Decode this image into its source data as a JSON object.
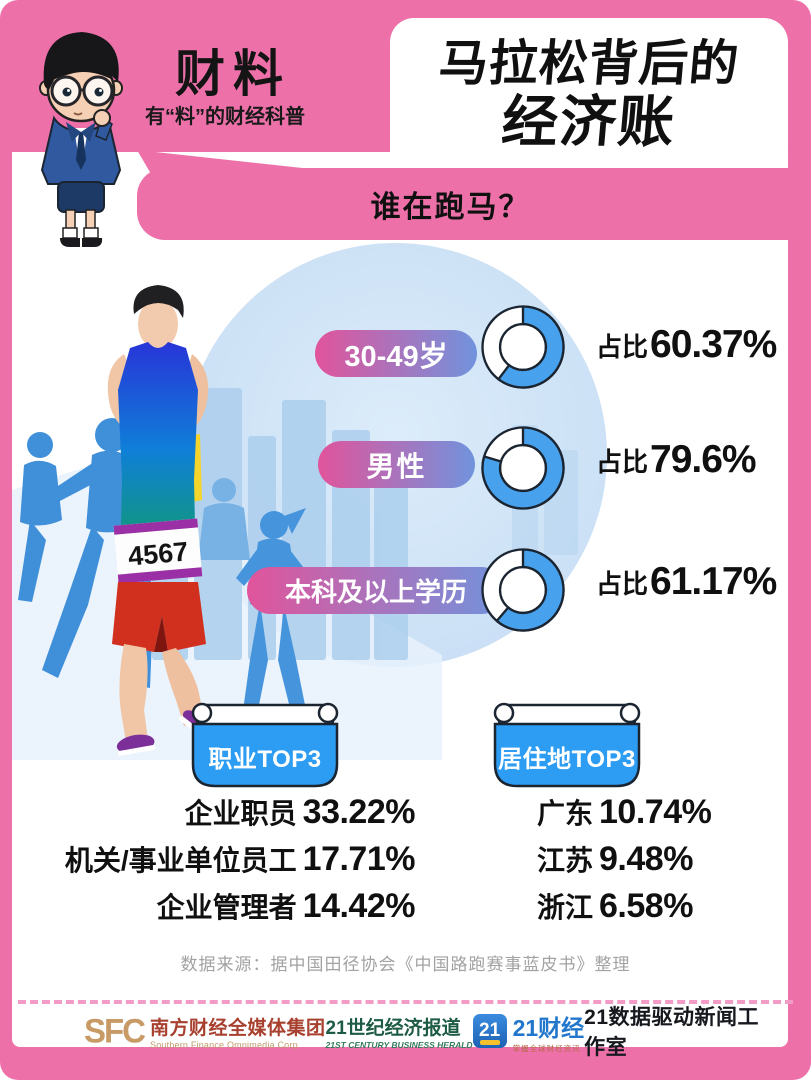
{
  "brand": {
    "title": "财料",
    "subtitle": "有“料”的财经科普"
  },
  "title": {
    "line1": "马拉松背后的",
    "line2": "经济账"
  },
  "section_banner": "谁在跑马？",
  "illustration": {
    "bib": "4567"
  },
  "chart_data": [
    {
      "type": "pie",
      "title": "谁在跑马？",
      "unit": "%",
      "value_prefix": "占比",
      "note": "three donut charts, blue segment starts at 12 o'clock and sweeps clockwise",
      "items": [
        {
          "label": "30-49岁",
          "value": 60.37,
          "display": "60.37%"
        },
        {
          "label": "男性",
          "value": 79.6,
          "display": "79.6%"
        },
        {
          "label": "本科及以上学历",
          "value": 61.17,
          "display": "61.17%"
        }
      ],
      "colors": {
        "fill": "#47a1ec",
        "rest": "#ffffff",
        "outline": "#1b2531"
      }
    },
    {
      "type": "table",
      "title": "职业TOP3",
      "rows": [
        [
          "企业职员",
          "33.22%"
        ],
        [
          "机关/事业单位员工",
          "17.71%"
        ],
        [
          "企业管理者",
          "14.42%"
        ]
      ]
    },
    {
      "type": "table",
      "title": "居住地TOP3",
      "rows": [
        [
          "广东",
          "10.74%"
        ],
        [
          "江苏",
          "9.48%"
        ],
        [
          "浙江",
          "6.58%"
        ]
      ]
    }
  ],
  "source": "数据来源：据中国田径协会《中国路跑赛事蓝皮书》整理",
  "footer": {
    "sfc": {
      "abbr": "SFC",
      "name_cn": "南方财经全媒体集团",
      "name_en": "Southern Finance Omnimedia Corp."
    },
    "herald": {
      "name_cn": "21世纪经济报道",
      "name_en": "21ST CENTURY BUSINESS HERALD"
    },
    "caijing": {
      "icon": "21",
      "name": "21财经",
      "tagline": "掌握全球财经资讯"
    },
    "studio": "21数据驱动新闻工作室"
  },
  "colors": {
    "pink": "#ee70a9",
    "donut_blue": "#47a1ec",
    "ribbon_blue": "#2d9cf3"
  }
}
